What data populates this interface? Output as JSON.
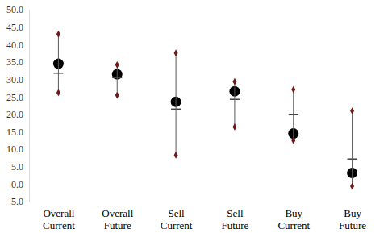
{
  "chart_data": {
    "type": "range",
    "categories": [
      "Overall Current",
      "Overall Future",
      "Sell Current",
      "Sell Future",
      "Buy Current",
      "Buy Future"
    ],
    "series": [
      {
        "type": "scatter",
        "marker": "circle",
        "color": "#000000",
        "values": [
          34.5,
          31.5,
          23.6,
          26.6,
          14.5,
          3.2
        ]
      },
      {
        "type": "scatter",
        "marker": "dash",
        "color": "#404040",
        "values": [
          31.8,
          30.5,
          21.5,
          24.3,
          19.9,
          7.2
        ]
      },
      {
        "type": "range",
        "marker": "diamond",
        "color": "#6e1a1a",
        "high": [
          43.0,
          34.2,
          37.6,
          29.4,
          27.1,
          21.0
        ],
        "low": [
          26.2,
          25.5,
          8.3,
          16.4,
          12.5,
          -0.6
        ]
      }
    ],
    "ylim": [
      -5,
      50
    ],
    "yticks": [
      {
        "value": -5,
        "label": "-5.0"
      },
      {
        "value": 0,
        "label": "0.0"
      },
      {
        "value": 5,
        "label": "5.0"
      },
      {
        "value": 10,
        "label": "10.0"
      },
      {
        "value": 15,
        "label": "15.0"
      },
      {
        "value": 20,
        "label": "20.0"
      },
      {
        "value": 25,
        "label": "25.0"
      },
      {
        "value": 30,
        "label": "30.0"
      },
      {
        "value": 35,
        "label": "35.0"
      },
      {
        "value": 40,
        "label": "40.0"
      },
      {
        "value": 45,
        "label": "45.0"
      },
      {
        "value": 50,
        "label": "50.0"
      }
    ],
    "grid": false
  }
}
